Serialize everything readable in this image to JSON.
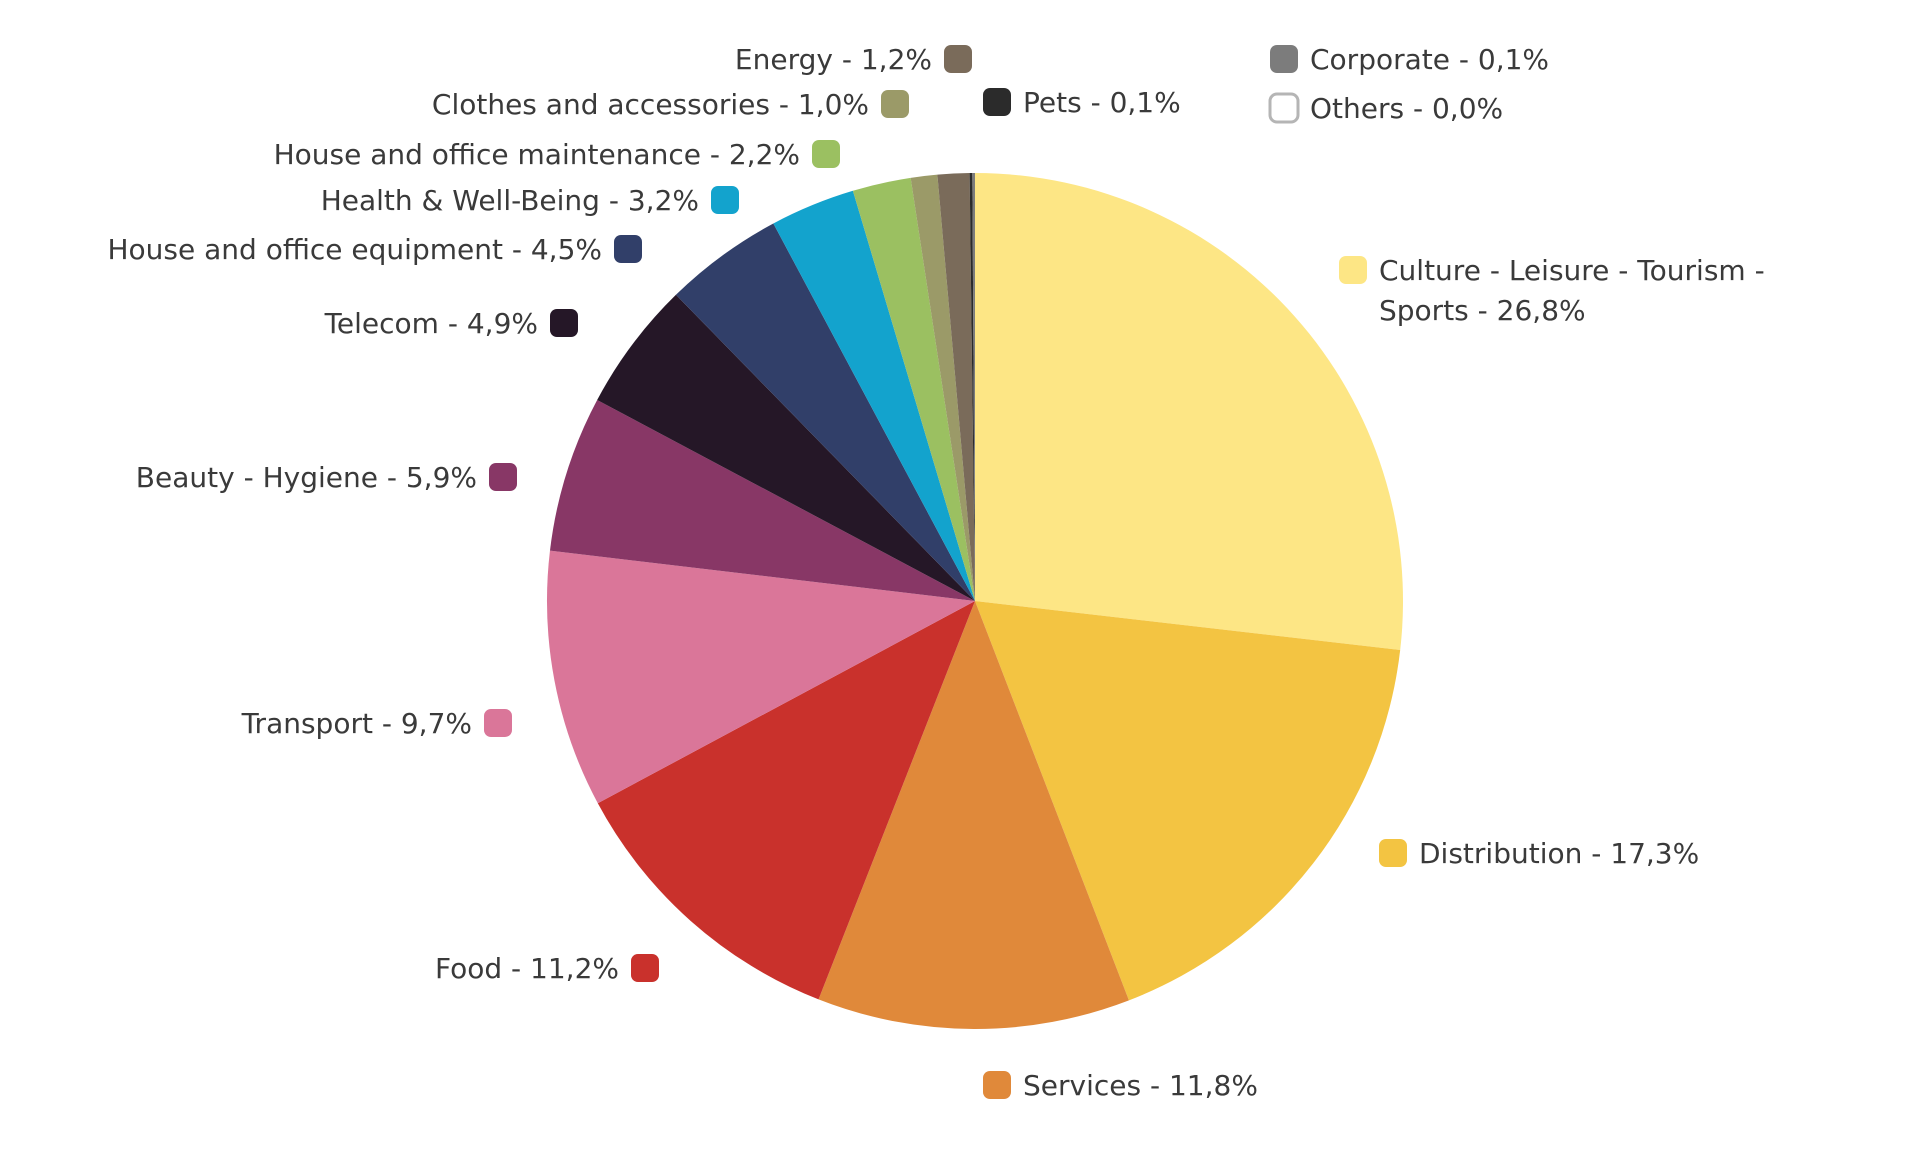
{
  "chart_data": {
    "type": "pie",
    "title": "",
    "start": "12 o'clock",
    "direction": "clockwise",
    "slices": [
      {
        "label": "Culture - Leisure - Tourism - Sports - 26,8%",
        "label_lines": [
          "Culture - Leisure - Tourism -",
          "Sports - 26,8%"
        ],
        "value": 26.8,
        "color": "#fde685"
      },
      {
        "label": "Distribution - 17,3%",
        "label_lines": [
          "Distribution - 17,3%"
        ],
        "value": 17.3,
        "color": "#f3c442"
      },
      {
        "label": "Services - 11,8%",
        "label_lines": [
          "Services - 11,8%"
        ],
        "value": 11.8,
        "color": "#e0893a"
      },
      {
        "label": "Food - 11,2%",
        "label_lines": [
          "Food - 11,2%"
        ],
        "value": 11.2,
        "color": "#c9312c"
      },
      {
        "label": "Transport - 9,7%",
        "label_lines": [
          "Transport - 9,7%"
        ],
        "value": 9.7,
        "color": "#da7699"
      },
      {
        "label": "Beauty - Hygiene - 5,9%",
        "label_lines": [
          "Beauty - Hygiene - 5,9%"
        ],
        "value": 5.9,
        "color": "#883766"
      },
      {
        "label": "Telecom - 4,9%",
        "label_lines": [
          "Telecom - 4,9%"
        ],
        "value": 4.9,
        "color": "#251727"
      },
      {
        "label": "House and office equipment  - 4,5%",
        "label_lines": [
          "House and office equipment  - 4,5%"
        ],
        "value": 4.5,
        "color": "#313f69"
      },
      {
        "label": "Health & Well-Being - 3,2%",
        "label_lines": [
          "Health & Well-Being - 3,2%"
        ],
        "value": 3.2,
        "color": "#13a3cd"
      },
      {
        "label": "House and office maintenance - 2,2%",
        "label_lines": [
          "House and office maintenance - 2,2%"
        ],
        "value": 2.2,
        "color": "#9bc061"
      },
      {
        "label": "Clothes and accessories - 1,0%",
        "label_lines": [
          "Clothes and accessories - 1,0%"
        ],
        "value": 1.0,
        "color": "#9b9a68"
      },
      {
        "label": "Energy - 1,2%",
        "label_lines": [
          "Energy - 1,2%"
        ],
        "value": 1.2,
        "color": "#7a6b5a"
      },
      {
        "label": "Pets - 0,1%",
        "label_lines": [
          "Pets - 0,1%"
        ],
        "value": 0.1,
        "color": "#2b2b2b"
      },
      {
        "label": "Corporate - 0,1%",
        "label_lines": [
          "Corporate - 0,1%"
        ],
        "value": 0.1,
        "color": "#7c7c7c"
      },
      {
        "label": "Others - 0,0%",
        "label_lines": [
          "Others - 0,0%"
        ],
        "value": 0.0,
        "color": "#ffffff"
      }
    ]
  }
}
